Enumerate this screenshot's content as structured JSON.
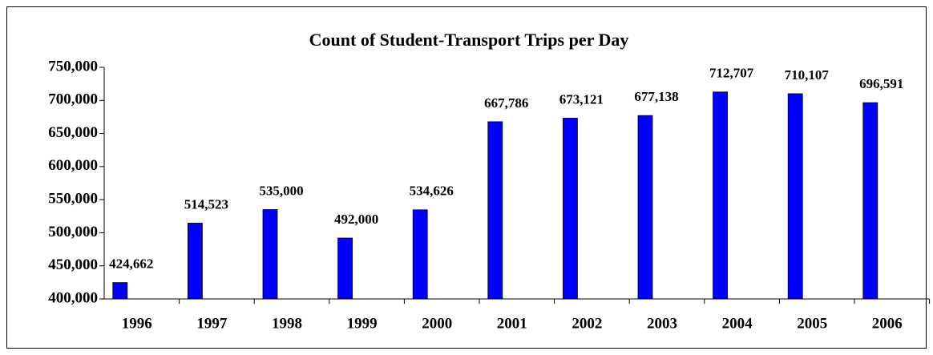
{
  "chart_data": {
    "type": "bar",
    "title": "Count of Student-Transport Trips per Day",
    "categories": [
      "1996",
      "1997",
      "1998",
      "1999",
      "2000",
      "2001",
      "2002",
      "2003",
      "2004",
      "2005",
      "2006"
    ],
    "values": [
      424662,
      514523,
      535000,
      492000,
      534626,
      667786,
      673121,
      677138,
      712707,
      710107,
      696591
    ],
    "value_labels": [
      "424,662",
      "514,523",
      "535,000",
      "492,000",
      "534,626",
      "667,786",
      "673,121",
      "677,138",
      "712,707",
      "710,107",
      "696,591"
    ],
    "color": "#0000ff",
    "ylim": [
      400000,
      750000
    ],
    "yticks": [
      {
        "value": 400000,
        "label": "400,000"
      },
      {
        "value": 450000,
        "label": "450,000"
      },
      {
        "value": 500000,
        "label": "500,000"
      },
      {
        "value": 550000,
        "label": "550,000"
      },
      {
        "value": 600000,
        "label": "600,000"
      },
      {
        "value": 650000,
        "label": "650,000"
      },
      {
        "value": 700000,
        "label": "700,000"
      },
      {
        "value": 750000,
        "label": "750,000"
      }
    ]
  }
}
